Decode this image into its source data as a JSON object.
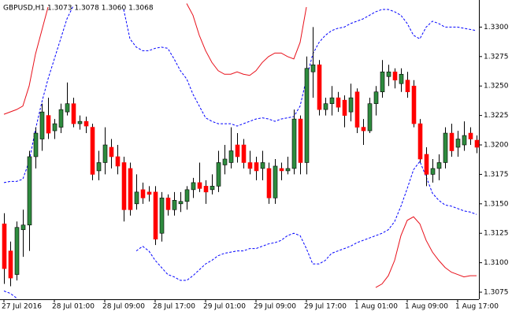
{
  "chart_data": {
    "type": "candlestick",
    "title": "GBPUSD,H1  1.3073 1.3078 1.3060 1.3068",
    "categories": [
      "27 Jul 2016",
      null,
      null,
      null,
      null,
      null,
      null,
      null,
      "28 Jul 01:00",
      null,
      null,
      null,
      null,
      null,
      null,
      null,
      "28 Jul 09:00",
      null,
      null,
      null,
      null,
      null,
      null,
      null,
      "28 Jul 17:00",
      null,
      null,
      null,
      null,
      null,
      null,
      null,
      "29 Jul 01:00",
      null,
      null,
      null,
      null,
      null,
      null,
      null,
      "29 Jul 09:00",
      null,
      null,
      null,
      null,
      null,
      null,
      null,
      "29 Jul 17:00",
      null,
      null,
      null,
      null,
      null,
      null,
      null,
      "1 Aug 01:00",
      null,
      null,
      null,
      null,
      null,
      null,
      null,
      "1 Aug 09:00",
      null,
      null,
      null,
      null,
      null,
      null,
      null,
      "1 Aug 17:00",
      null,
      null,
      null
    ],
    "open": [
      1.3133,
      1.311,
      1.309,
      1.3128,
      1.3132,
      1.319,
      1.3205,
      1.3225,
      1.3212,
      1.3215,
      1.3228,
      1.3235,
      1.3218,
      1.322,
      1.3215,
      1.3178,
      1.3185,
      1.3198,
      1.319,
      1.3185,
      1.318,
      1.315,
      1.3162,
      1.316,
      1.316,
      1.3125,
      1.3155,
      1.3145,
      1.315,
      1.3152,
      1.3162,
      1.3168,
      1.3165,
      1.3162,
      1.3165,
      1.3183,
      1.3185,
      1.32,
      1.32,
      1.3185,
      1.3185,
      1.318,
      1.318,
      1.3155,
      1.318,
      1.3178,
      1.318,
      1.3222,
      1.3185,
      1.3262,
      1.3268,
      1.323,
      1.3235,
      1.324,
      1.3238,
      1.3228,
      1.3245,
      1.3215,
      1.3212,
      1.3235,
      1.3245,
      1.3258,
      1.3262,
      1.3252,
      1.3255,
      1.325,
      1.3218,
      1.3192,
      1.3175,
      1.318,
      1.3185,
      1.321,
      1.3198,
      1.32,
      1.321,
      1.3204
    ],
    "high": [
      1.3142,
      1.3118,
      1.3135,
      1.3145,
      1.3195,
      1.3215,
      1.3235,
      1.324,
      1.3222,
      1.3235,
      1.3253,
      1.324,
      1.3225,
      1.3224,
      1.3218,
      1.3195,
      1.3215,
      1.3205,
      1.32,
      1.319,
      1.3185,
      1.3175,
      1.3168,
      1.3165,
      1.3165,
      1.316,
      1.3158,
      1.316,
      1.316,
      1.3165,
      1.3172,
      1.3185,
      1.317,
      1.3175,
      1.3195,
      1.32,
      1.3215,
      1.321,
      1.3205,
      1.3195,
      1.319,
      1.3195,
      1.3185,
      1.3188,
      1.3185,
      1.319,
      1.323,
      1.3225,
      1.3275,
      1.33,
      1.3272,
      1.324,
      1.325,
      1.3245,
      1.3242,
      1.3252,
      1.3248,
      1.3222,
      1.324,
      1.325,
      1.3272,
      1.3268,
      1.3265,
      1.3265,
      1.3262,
      1.3255,
      1.3222,
      1.3198,
      1.3188,
      1.3192,
      1.3215,
      1.3218,
      1.3212,
      1.322,
      1.3215,
      1.3208
    ],
    "low": [
      1.3082,
      1.308,
      1.3085,
      1.3105,
      1.311,
      1.318,
      1.3195,
      1.3205,
      1.3205,
      1.321,
      1.3225,
      1.3215,
      1.3213,
      1.321,
      1.317,
      1.317,
      1.3175,
      1.318,
      1.3175,
      1.3135,
      1.314,
      1.3145,
      1.315,
      1.3152,
      1.3115,
      1.3118,
      1.314,
      1.314,
      1.3143,
      1.3145,
      1.3155,
      1.316,
      1.315,
      1.3158,
      1.316,
      1.3175,
      1.318,
      1.3185,
      1.318,
      1.3175,
      1.317,
      1.317,
      1.315,
      1.315,
      1.317,
      1.3175,
      1.3175,
      1.3175,
      1.3175,
      1.324,
      1.3225,
      1.3225,
      1.3225,
      1.3228,
      1.3215,
      1.322,
      1.321,
      1.32,
      1.321,
      1.3225,
      1.324,
      1.325,
      1.3248,
      1.3245,
      1.324,
      1.3215,
      1.3185,
      1.3165,
      1.3168,
      1.317,
      1.318,
      1.319,
      1.319,
      1.3195,
      1.32,
      1.3193
    ],
    "close": [
      1.3095,
      1.3087,
      1.313,
      1.3132,
      1.319,
      1.321,
      1.3228,
      1.321,
      1.3218,
      1.323,
      1.3235,
      1.3218,
      1.322,
      1.3216,
      1.3175,
      1.3185,
      1.32,
      1.319,
      1.3182,
      1.3145,
      1.3145,
      1.316,
      1.3155,
      1.3158,
      1.312,
      1.3155,
      1.3145,
      1.3153,
      1.3152,
      1.3162,
      1.3168,
      1.3163,
      1.316,
      1.3165,
      1.3185,
      1.3188,
      1.3195,
      1.319,
      1.3185,
      1.318,
      1.3178,
      1.3185,
      1.3155,
      1.3182,
      1.3178,
      1.318,
      1.3222,
      1.3185,
      1.3265,
      1.3268,
      1.323,
      1.3235,
      1.324,
      1.3232,
      1.3225,
      1.324,
      1.3215,
      1.3212,
      1.3235,
      1.3245,
      1.3262,
      1.3262,
      1.3255,
      1.326,
      1.3245,
      1.3218,
      1.3188,
      1.3175,
      1.318,
      1.3185,
      1.321,
      1.3195,
      1.3205,
      1.3208,
      1.3205,
      1.3198
    ],
    "up_color": "#2e8b3e",
    "down_color": "#ff0000",
    "series": [
      {
        "color": "#0000ff",
        "dashed": true,
        "values": [
          1.3168,
          1.3169,
          1.3169,
          1.3171,
          1.3186,
          1.3213,
          1.3236,
          1.3256,
          1.3273,
          1.329,
          1.3307,
          1.3318,
          null,
          null,
          null,
          null,
          null,
          null,
          null,
          1.3315,
          1.329,
          1.3283,
          1.328,
          1.328,
          1.3282,
          1.3283,
          1.3282,
          1.3273,
          1.3263,
          1.3256,
          1.3243,
          1.3233,
          1.3223,
          1.322,
          1.3218,
          1.3218,
          1.3218,
          1.3216,
          1.3218,
          1.322,
          1.3222,
          1.3223,
          1.3222,
          1.322,
          1.3222,
          1.3223,
          1.3224,
          1.3233,
          1.3256,
          1.3277,
          1.3287,
          1.3293,
          1.3297,
          1.3299,
          1.33,
          1.3303,
          1.3305,
          1.3307,
          1.331,
          1.3313,
          1.3315,
          1.3315,
          1.3313,
          1.331,
          1.3303,
          1.3293,
          1.329,
          1.33,
          1.3305,
          1.3303,
          1.33,
          1.33,
          1.33,
          1.3299,
          1.3298,
          1.3297
        ]
      },
      {
        "color": "#0000ff",
        "dashed": true,
        "values": [
          1.3076,
          1.3074,
          1.307,
          null,
          null,
          null,
          null,
          null,
          null,
          null,
          null,
          null,
          null,
          null,
          null,
          null,
          null,
          null,
          null,
          null,
          null,
          1.311,
          1.3114,
          1.311,
          1.3102,
          1.3096,
          1.309,
          1.3088,
          1.3085,
          1.3085,
          1.3089,
          1.3094,
          1.3099,
          1.3102,
          1.3106,
          1.3108,
          1.3109,
          1.311,
          1.311,
          1.3112,
          1.3112,
          1.3114,
          1.3116,
          1.3117,
          1.3119,
          1.3123,
          1.3125,
          1.3123,
          1.3112,
          1.3099,
          1.3099,
          1.3102,
          1.3108,
          1.311,
          1.3112,
          1.3114,
          1.3117,
          1.3119,
          1.3121,
          1.3123,
          1.3125,
          1.3128,
          1.3135,
          1.3148,
          1.3163,
          1.3179,
          1.3186,
          1.3173,
          1.3159,
          1.3153,
          1.3149,
          1.3148,
          1.3146,
          1.3144,
          1.3143,
          1.3141
        ]
      },
      {
        "color": "#e8101a",
        "dashed": false,
        "values": [
          1.3226,
          1.3228,
          1.323,
          1.3233,
          1.325,
          1.3277,
          1.3297,
          1.3317,
          null,
          null,
          null,
          null,
          null,
          null,
          null,
          null,
          null,
          null,
          null,
          null,
          null,
          null,
          null,
          null,
          null,
          null,
          null,
          null,
          null,
          1.332,
          1.331,
          1.3293,
          1.328,
          1.327,
          1.3263,
          1.326,
          1.326,
          1.3262,
          1.326,
          1.3259,
          1.3263,
          1.327,
          1.3275,
          1.3278,
          1.3278,
          1.3275,
          1.3273,
          1.3287,
          1.3317,
          null,
          null,
          null,
          null,
          null,
          null,
          null,
          null,
          null,
          null,
          null,
          null,
          null,
          null,
          null,
          null,
          null,
          null,
          null,
          null,
          null,
          null,
          null,
          null,
          null,
          null,
          null
        ]
      },
      {
        "color": "#e8101a",
        "dashed": false,
        "values": [
          null,
          null,
          null,
          null,
          null,
          null,
          null,
          null,
          null,
          null,
          null,
          null,
          null,
          null,
          null,
          null,
          null,
          null,
          null,
          null,
          null,
          null,
          null,
          null,
          null,
          null,
          null,
          null,
          null,
          null,
          null,
          null,
          null,
          null,
          null,
          null,
          null,
          null,
          null,
          null,
          null,
          null,
          null,
          null,
          null,
          null,
          null,
          null,
          null,
          null,
          null,
          null,
          null,
          null,
          null,
          null,
          null,
          null,
          null,
          1.3079,
          1.3082,
          1.3089,
          1.3102,
          1.3123,
          1.3136,
          1.3139,
          1.3133,
          1.3119,
          1.3109,
          1.3102,
          1.3096,
          1.3092,
          1.309,
          1.3088,
          1.3089,
          1.3089
        ]
      }
    ],
    "ylim": [
      1.3069,
      1.3323
    ],
    "yticks": [
      1.3075,
      {
        "value": 1.31,
        "label": "1.3100"
      },
      1.3125,
      {
        "value": 1.315,
        "label": "1.3150"
      },
      1.3175,
      {
        "value": 1.32,
        "label": "1.3200"
      },
      1.3225,
      {
        "value": 1.325,
        "label": "1.3250"
      },
      1.3275,
      {
        "value": 1.33,
        "label": "1.3300"
      }
    ]
  }
}
